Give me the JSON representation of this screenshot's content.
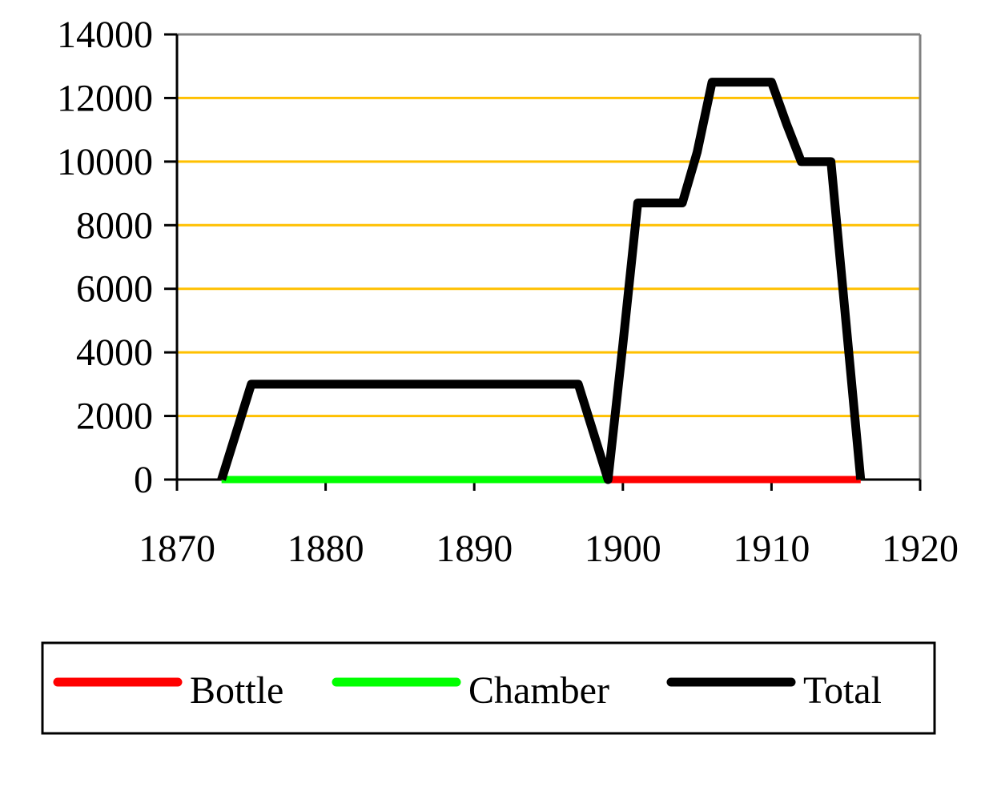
{
  "chart_data": {
    "type": "line",
    "x": [
      1873,
      1874,
      1875,
      1876,
      1877,
      1878,
      1879,
      1880,
      1881,
      1882,
      1883,
      1884,
      1885,
      1886,
      1887,
      1888,
      1889,
      1890,
      1891,
      1892,
      1893,
      1894,
      1895,
      1896,
      1897,
      1898,
      1899,
      1900,
      1901,
      1902,
      1903,
      1904,
      1905,
      1906,
      1907,
      1908,
      1909,
      1910,
      1911,
      1912,
      1913,
      1914,
      1915,
      1916
    ],
    "series": [
      {
        "name": "Bottle",
        "color": "#ff0000",
        "values": [
          0,
          1500,
          3000,
          3000,
          3000,
          3000,
          3000,
          3000,
          3000,
          3000,
          3000,
          3000,
          3000,
          3000,
          3000,
          3000,
          3000,
          3000,
          3000,
          3000,
          3000,
          3000,
          3000,
          3000,
          3000,
          1500,
          0,
          0,
          0,
          0,
          0,
          0,
          0,
          0,
          0,
          0,
          0,
          0,
          0,
          0,
          0,
          0,
          0,
          0
        ]
      },
      {
        "name": "Chamber",
        "color": "#00ff00",
        "values": [
          0,
          0,
          0,
          0,
          0,
          0,
          0,
          0,
          0,
          0,
          0,
          0,
          0,
          0,
          0,
          0,
          0,
          0,
          0,
          0,
          0,
          0,
          0,
          0,
          0,
          0,
          0,
          4250,
          8700,
          8700,
          8700,
          8700,
          10300,
          12500,
          12500,
          12500,
          12500,
          12500,
          11200,
          10000,
          10000,
          10000,
          5000,
          0
        ]
      },
      {
        "name": "Total",
        "color": "#000000",
        "values": [
          0,
          1500,
          3000,
          3000,
          3000,
          3000,
          3000,
          3000,
          3000,
          3000,
          3000,
          3000,
          3000,
          3000,
          3000,
          3000,
          3000,
          3000,
          3000,
          3000,
          3000,
          3000,
          3000,
          3000,
          3000,
          1500,
          0,
          4250,
          8700,
          8700,
          8700,
          8700,
          10300,
          12500,
          12500,
          12500,
          12500,
          12500,
          11200,
          10000,
          10000,
          10000,
          5000,
          0
        ]
      }
    ],
    "xlim": [
      1870,
      1920
    ],
    "xticks": [
      1870,
      1880,
      1890,
      1900,
      1910,
      1920
    ],
    "ylim": [
      0,
      14000
    ],
    "yticks": [
      0,
      2000,
      4000,
      6000,
      8000,
      10000,
      12000,
      14000
    ],
    "grid": true,
    "grid_color": "#ffc000",
    "legend": "bottom"
  }
}
